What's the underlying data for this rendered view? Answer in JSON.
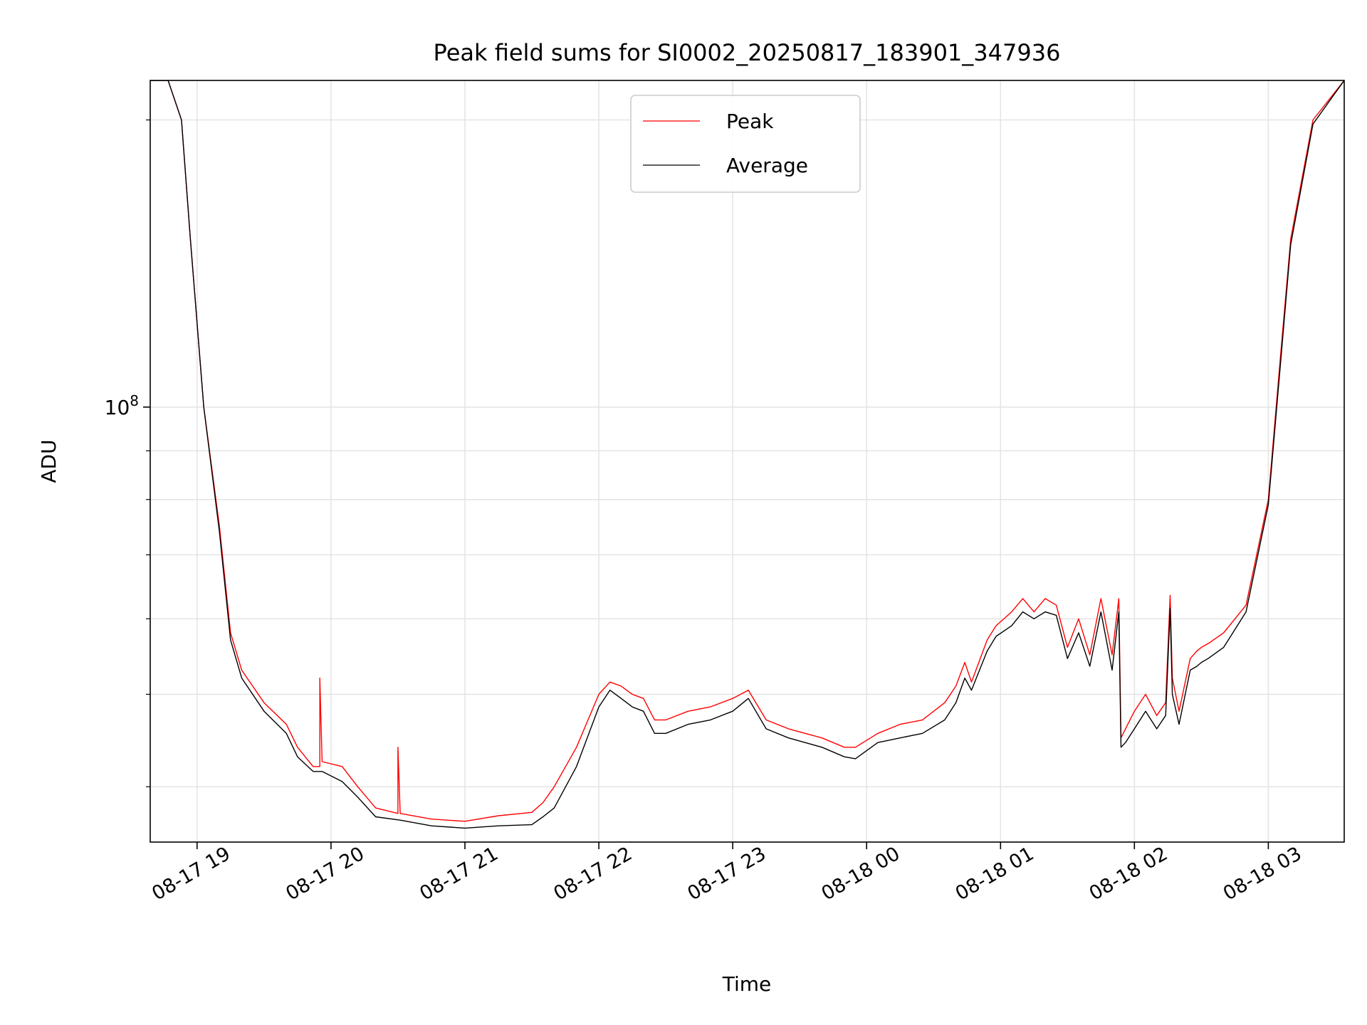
{
  "chart_data": {
    "type": "line",
    "title": "Peak field sums for SI0002_20250817_183901_347936",
    "xlabel": "Time",
    "ylabel": "ADU",
    "x_range": [
      "2025-08-17 18:39",
      "2025-08-18 03:34"
    ],
    "y_scale": "log",
    "ylim": [
      35000000,
      220000000
    ],
    "y_major_ticks": [
      {
        "value": 100000000,
        "base": "10",
        "exp": "8"
      }
    ],
    "y_minor_ticks": [
      40000000,
      50000000,
      60000000,
      70000000,
      80000000,
      90000000,
      200000000
    ],
    "x_ticks": [
      {
        "label": "08-17 19",
        "time": "2025-08-17 19:00"
      },
      {
        "label": "08-17 20",
        "time": "2025-08-17 20:00"
      },
      {
        "label": "08-17 21",
        "time": "2025-08-17 21:00"
      },
      {
        "label": "08-17 22",
        "time": "2025-08-17 22:00"
      },
      {
        "label": "08-17 23",
        "time": "2025-08-17 23:00"
      },
      {
        "label": "08-18 00",
        "time": "2025-08-18 00:00"
      },
      {
        "label": "08-18 01",
        "time": "2025-08-18 01:00"
      },
      {
        "label": "08-18 02",
        "time": "2025-08-18 02:00"
      },
      {
        "label": "08-18 03",
        "time": "2025-08-18 03:00"
      }
    ],
    "grid": true,
    "legend_position": "upper center",
    "series": [
      {
        "name": "Peak",
        "color": "#ff0000",
        "x": [
          "2025-08-17 18:39",
          "2025-08-17 18:47",
          "2025-08-17 18:53",
          "2025-08-17 18:57",
          "2025-08-17 19:03",
          "2025-08-17 19:10",
          "2025-08-17 19:15",
          "2025-08-17 19:20",
          "2025-08-17 19:30",
          "2025-08-17 19:40",
          "2025-08-17 19:45",
          "2025-08-17 19:52",
          "2025-08-17 19:55",
          "2025-08-17 19:55",
          "2025-08-17 19:56",
          "2025-08-17 20:05",
          "2025-08-17 20:12",
          "2025-08-17 20:20",
          "2025-08-17 20:30",
          "2025-08-17 20:30",
          "2025-08-17 20:31",
          "2025-08-17 20:45",
          "2025-08-17 21:00",
          "2025-08-17 21:15",
          "2025-08-17 21:30",
          "2025-08-17 21:35",
          "2025-08-17 21:40",
          "2025-08-17 21:50",
          "2025-08-17 22:00",
          "2025-08-17 22:05",
          "2025-08-17 22:10",
          "2025-08-17 22:15",
          "2025-08-17 22:20",
          "2025-08-17 22:25",
          "2025-08-17 22:30",
          "2025-08-17 22:40",
          "2025-08-17 22:50",
          "2025-08-17 23:00",
          "2025-08-17 23:07",
          "2025-08-17 23:15",
          "2025-08-17 23:25",
          "2025-08-17 23:40",
          "2025-08-17 23:50",
          "2025-08-17 23:55",
          "2025-08-18 00:05",
          "2025-08-18 00:15",
          "2025-08-18 00:25",
          "2025-08-18 00:35",
          "2025-08-18 00:40",
          "2025-08-18 00:44",
          "2025-08-18 00:47",
          "2025-08-18 00:54",
          "2025-08-18 00:58",
          "2025-08-18 01:05",
          "2025-08-18 01:10",
          "2025-08-18 01:15",
          "2025-08-18 01:20",
          "2025-08-18 01:25",
          "2025-08-18 01:30",
          "2025-08-18 01:35",
          "2025-08-18 01:40",
          "2025-08-18 01:45",
          "2025-08-18 01:50",
          "2025-08-18 01:53",
          "2025-08-18 01:54",
          "2025-08-18 01:56",
          "2025-08-18 02:00",
          "2025-08-18 02:05",
          "2025-08-18 02:10",
          "2025-08-18 02:14",
          "2025-08-18 02:16",
          "2025-08-18 02:17",
          "2025-08-18 02:20",
          "2025-08-18 02:25",
          "2025-08-18 02:28",
          "2025-08-18 02:30",
          "2025-08-18 02:33",
          "2025-08-18 02:40",
          "2025-08-18 02:50",
          "2025-08-18 03:00",
          "2025-08-18 03:05",
          "2025-08-18 03:10",
          "2025-08-18 03:20",
          "2025-08-18 03:34"
        ],
        "values": [
          220000000,
          220000000,
          200000000,
          150000000,
          100000000,
          75000000,
          58000000,
          53000000,
          49000000,
          46500000,
          44000000,
          42000000,
          42000000,
          52000000,
          42500000,
          42000000,
          40000000,
          38000000,
          37500000,
          44000000,
          37500000,
          37000000,
          36800000,
          37300000,
          37600000,
          38500000,
          40000000,
          44000000,
          50000000,
          51500000,
          51000000,
          50000000,
          49500000,
          47000000,
          47000000,
          48000000,
          48500000,
          49500000,
          50500000,
          47000000,
          46000000,
          45000000,
          44000000,
          44000000,
          45500000,
          46500000,
          47000000,
          49000000,
          51000000,
          54000000,
          51500000,
          57000000,
          59000000,
          61000000,
          63000000,
          61000000,
          63000000,
          62000000,
          56000000,
          60000000,
          55000000,
          63000000,
          55000000,
          63000000,
          45000000,
          46000000,
          48000000,
          50000000,
          47500000,
          49000000,
          63500000,
          52000000,
          48000000,
          54500000,
          55500000,
          56000000,
          56500000,
          58000000,
          62000000,
          80000000,
          110000000,
          150000000,
          200000000,
          220000000
        ]
      },
      {
        "name": "Average",
        "color": "#000000",
        "x": [
          "2025-08-17 18:39",
          "2025-08-17 18:47",
          "2025-08-17 18:53",
          "2025-08-17 18:57",
          "2025-08-17 19:03",
          "2025-08-17 19:10",
          "2025-08-17 19:15",
          "2025-08-17 19:20",
          "2025-08-17 19:30",
          "2025-08-17 19:40",
          "2025-08-17 19:45",
          "2025-08-17 19:52",
          "2025-08-17 19:56",
          "2025-08-17 20:05",
          "2025-08-17 20:12",
          "2025-08-17 20:20",
          "2025-08-17 20:31",
          "2025-08-17 20:45",
          "2025-08-17 21:00",
          "2025-08-17 21:15",
          "2025-08-17 21:30",
          "2025-08-17 21:35",
          "2025-08-17 21:40",
          "2025-08-17 21:50",
          "2025-08-17 22:00",
          "2025-08-17 22:05",
          "2025-08-17 22:10",
          "2025-08-17 22:15",
          "2025-08-17 22:20",
          "2025-08-17 22:25",
          "2025-08-17 22:30",
          "2025-08-17 22:40",
          "2025-08-17 22:50",
          "2025-08-17 23:00",
          "2025-08-17 23:07",
          "2025-08-17 23:15",
          "2025-08-17 23:25",
          "2025-08-17 23:40",
          "2025-08-17 23:50",
          "2025-08-17 23:55",
          "2025-08-18 00:05",
          "2025-08-18 00:15",
          "2025-08-18 00:25",
          "2025-08-18 00:35",
          "2025-08-18 00:40",
          "2025-08-18 00:44",
          "2025-08-18 00:47",
          "2025-08-18 00:54",
          "2025-08-18 00:58",
          "2025-08-18 01:05",
          "2025-08-18 01:10",
          "2025-08-18 01:15",
          "2025-08-18 01:20",
          "2025-08-18 01:25",
          "2025-08-18 01:30",
          "2025-08-18 01:35",
          "2025-08-18 01:40",
          "2025-08-18 01:45",
          "2025-08-18 01:50",
          "2025-08-18 01:53",
          "2025-08-18 01:54",
          "2025-08-18 01:56",
          "2025-08-18 02:00",
          "2025-08-18 02:05",
          "2025-08-18 02:10",
          "2025-08-18 02:14",
          "2025-08-18 02:16",
          "2025-08-18 02:17",
          "2025-08-18 02:20",
          "2025-08-18 02:25",
          "2025-08-18 02:28",
          "2025-08-18 02:30",
          "2025-08-18 02:33",
          "2025-08-18 02:40",
          "2025-08-18 02:50",
          "2025-08-18 03:00",
          "2025-08-18 03:05",
          "2025-08-18 03:10",
          "2025-08-18 03:20",
          "2025-08-18 03:34"
        ],
        "values": [
          220000000,
          220000000,
          200000000,
          150000000,
          100000000,
          74000000,
          57000000,
          52000000,
          48000000,
          45500000,
          43000000,
          41500000,
          41500000,
          40500000,
          39000000,
          37200000,
          36900000,
          36400000,
          36200000,
          36400000,
          36500000,
          37200000,
          38000000,
          42000000,
          48500000,
          50500000,
          49500000,
          48500000,
          48000000,
          45500000,
          45500000,
          46500000,
          47000000,
          48000000,
          49500000,
          46000000,
          45000000,
          44000000,
          43000000,
          42800000,
          44500000,
          45000000,
          45500000,
          47000000,
          49000000,
          52000000,
          50500000,
          55500000,
          57500000,
          59000000,
          61000000,
          60000000,
          61000000,
          60500000,
          54500000,
          58000000,
          53500000,
          61000000,
          53000000,
          61000000,
          44000000,
          44500000,
          46000000,
          48000000,
          46000000,
          47500000,
          61500000,
          50000000,
          46500000,
          53000000,
          53500000,
          54000000,
          54500000,
          56000000,
          61000000,
          79000000,
          108000000,
          148000000,
          198000000,
          220000000
        ]
      }
    ]
  }
}
